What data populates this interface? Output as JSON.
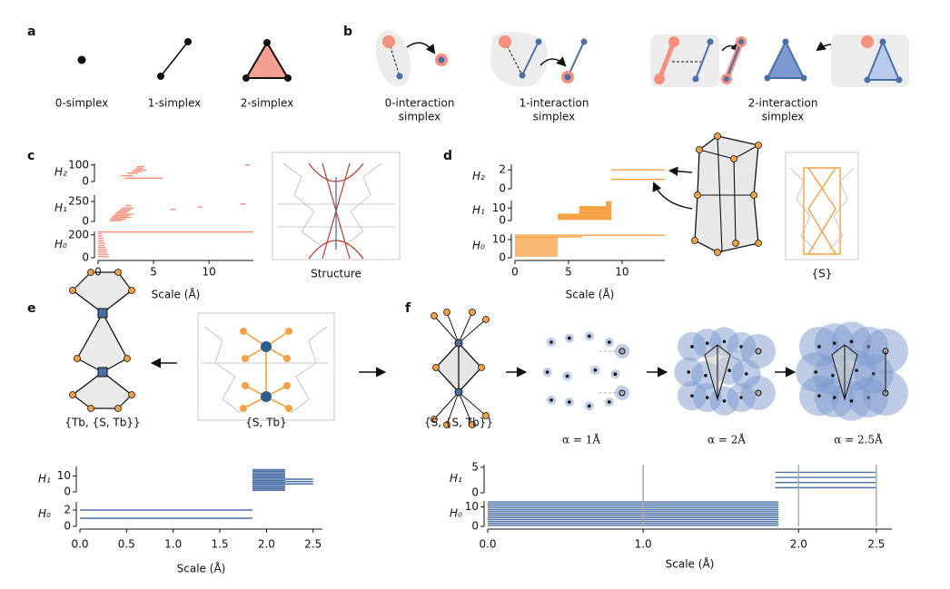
{
  "panel_a": {
    "label": "a",
    "simplices": [
      "0-simplex",
      "1-simplex",
      "2-simplex"
    ]
  },
  "panel_b": {
    "label": "b",
    "captions": [
      [
        "0-interaction",
        "simplex"
      ],
      [
        "1-interaction",
        "simplex"
      ],
      [
        "2-interaction",
        "simplex"
      ]
    ]
  },
  "panel_c": {
    "label": "c",
    "structure_caption": "Structure",
    "chart": {
      "type": "barcode",
      "color": "#f4907d",
      "xlim": [
        0,
        14
      ],
      "xticks": [
        0,
        5,
        10
      ],
      "xlabel": "Scale (Å)",
      "rows": [
        {
          "name": "H₂",
          "ylim": [
            0,
            110
          ],
          "yticks": [
            0,
            100
          ],
          "row": [
            20,
            35,
            50,
            60,
            70,
            80,
            90,
            100
          ],
          "start": [
            2.4,
            2.0,
            2.6,
            3.0,
            3.2,
            3.4,
            3.5,
            13.2
          ],
          "end": [
            5.8,
            3.2,
            3.6,
            4.0,
            4.4,
            4.0,
            4.2,
            13.7
          ]
        },
        {
          "name": "H₁",
          "ylim": [
            0,
            330
          ],
          "yticks": [
            0,
            250
          ],
          "row": [
            10,
            30,
            50,
            70,
            90,
            110,
            130,
            150,
            150,
            170,
            180,
            200,
            220
          ],
          "start": [
            1.0,
            1.1,
            1.2,
            1.3,
            1.5,
            1.6,
            1.8,
            2.0,
            6.5,
            2.2,
            9.0,
            2.5,
            12.8
          ],
          "end": [
            2.2,
            2.5,
            3.0,
            2.8,
            3.2,
            2.6,
            2.8,
            3.0,
            7.0,
            3.2,
            9.4,
            3.0,
            13.3
          ]
        },
        {
          "name": "H₀",
          "ylim": [
            0,
            230
          ],
          "yticks": [
            0,
            200
          ],
          "row": [
            10,
            30,
            50,
            70,
            90,
            110,
            130,
            150,
            170,
            190,
            210,
            225
          ],
          "start": [
            0,
            0,
            0,
            0,
            0,
            0,
            0,
            0,
            0,
            0,
            0,
            0
          ],
          "end": [
            1.0,
            0.9,
            0.8,
            0.8,
            0.7,
            0.6,
            0.6,
            0.5,
            0.5,
            0.4,
            0.3,
            14
          ]
        }
      ]
    }
  },
  "panel_d": {
    "label": "d",
    "structure_caption": "{S}",
    "chart": {
      "type": "barcode",
      "color": "#f5a142",
      "xlim": [
        0,
        14
      ],
      "xticks": [
        0,
        5,
        10
      ],
      "xlabel": "Scale (Å)",
      "rows": [
        {
          "name": "H₂",
          "ylim": [
            0,
            2.6
          ],
          "yticks": [
            0,
            2
          ],
          "row": [
            1,
            2
          ],
          "start": [
            9,
            9
          ],
          "end": [
            14,
            14
          ]
        },
        {
          "name": "H₁",
          "ylim": [
            0,
            16
          ],
          "yticks": [
            0,
            10
          ],
          "row": [
            1,
            2,
            3,
            4,
            5,
            6,
            7,
            8,
            9,
            10,
            11,
            12,
            13,
            14,
            15
          ],
          "start": [
            4,
            4,
            4,
            4,
            4,
            6,
            6,
            6,
            6,
            6,
            6,
            8.5,
            8.5,
            8.5,
            8.5
          ],
          "end": [
            9,
            9,
            9,
            9,
            9,
            9,
            9,
            9,
            9,
            9,
            9,
            9,
            9,
            9,
            9
          ]
        },
        {
          "name": "H₀",
          "ylim": [
            0,
            13
          ],
          "yticks": [
            0,
            10
          ],
          "row": [
            1,
            2,
            3,
            4,
            5,
            6,
            7,
            8,
            9,
            10,
            11,
            11.5,
            12.4
          ],
          "start": [
            0,
            0,
            0,
            0,
            0,
            0,
            0,
            0,
            0,
            0,
            0,
            0,
            0
          ],
          "end": [
            4,
            4,
            4,
            4,
            4,
            4,
            4,
            4,
            4,
            4,
            4,
            6.3,
            14
          ]
        }
      ]
    }
  },
  "panel_e": {
    "label": "e",
    "captions": [
      "{Tb, {S, Tb}}",
      "{S, Tb}"
    ],
    "chart": {
      "type": "barcode",
      "color": "#4a6fa5",
      "xlim": [
        0,
        2.6
      ],
      "xticks": [
        {
          "value": 0,
          "label": "0.0"
        },
        0.5,
        {
          "value": 1,
          "label": "1.0"
        },
        1.5,
        {
          "value": 2,
          "label": "2.0"
        },
        2.5
      ],
      "xlabel": "Scale (Å)",
      "rows": [
        {
          "name": "H₁",
          "ylim": [
            0,
            16
          ],
          "yticks": [
            0,
            10
          ],
          "row": [
            1,
            2,
            3,
            4,
            5,
            6,
            7,
            8,
            9,
            10,
            11,
            12,
            13,
            14,
            5,
            6.5,
            8
          ],
          "start": [
            1.85,
            1.85,
            1.85,
            1.85,
            1.85,
            1.85,
            1.85,
            1.85,
            1.85,
            1.85,
            1.85,
            1.85,
            1.85,
            1.85,
            2.2,
            2.2,
            2.2
          ],
          "end": [
            2.2,
            2.2,
            2.2,
            2.2,
            2.2,
            2.2,
            2.2,
            2.2,
            2.2,
            2.2,
            2.2,
            2.2,
            2.2,
            2.2,
            2.5,
            2.5,
            2.5
          ]
        },
        {
          "name": "H₀",
          "ylim": [
            0,
            3
          ],
          "yticks": [
            0,
            2
          ],
          "row": [
            1,
            2
          ],
          "start": [
            0,
            0
          ],
          "end": [
            1.85,
            1.85
          ]
        }
      ]
    }
  },
  "panel_f": {
    "label": "f",
    "captions": [
      "{S, {S, Tb}}",
      "α = 1Å",
      "α = 2Å",
      "α = 2.5Å"
    ],
    "chart": {
      "type": "barcode",
      "color": "#4a6fa5",
      "xlim": [
        0,
        2.6
      ],
      "xticks": [
        {
          "value": 0,
          "label": "0.0"
        },
        {
          "value": 1,
          "label": "1.0"
        },
        {
          "value": 2,
          "label": "2.0"
        },
        2.5
      ],
      "xlabel": "Scale (Å)",
      "markers": [
        1,
        2,
        2.5
      ],
      "rows": [
        {
          "name": "H₁",
          "ylim": [
            0,
            5.5
          ],
          "yticks": [
            0,
            5
          ],
          "row": [
            1,
            2,
            3,
            4
          ],
          "start": [
            1.85,
            1.85,
            1.85,
            1.85
          ],
          "end": [
            2.5,
            2.5,
            2.5,
            2.5
          ]
        },
        {
          "name": "H₀",
          "ylim": [
            0,
            13
          ],
          "yticks": [
            0,
            10
          ],
          "row": [
            0.5,
            1.5,
            2.5,
            3.5,
            4.5,
            5.5,
            6.5,
            7.5,
            8.5,
            9.5,
            10.5,
            11.5,
            12.5
          ],
          "start": [
            0,
            0,
            0,
            0,
            0,
            0,
            0,
            0,
            0,
            0,
            0,
            0,
            0
          ],
          "end": [
            1.87,
            1.87,
            1.87,
            1.87,
            1.87,
            1.87,
            1.87,
            1.87,
            1.87,
            1.87,
            1.87,
            1.87,
            1.87
          ]
        }
      ]
    }
  }
}
